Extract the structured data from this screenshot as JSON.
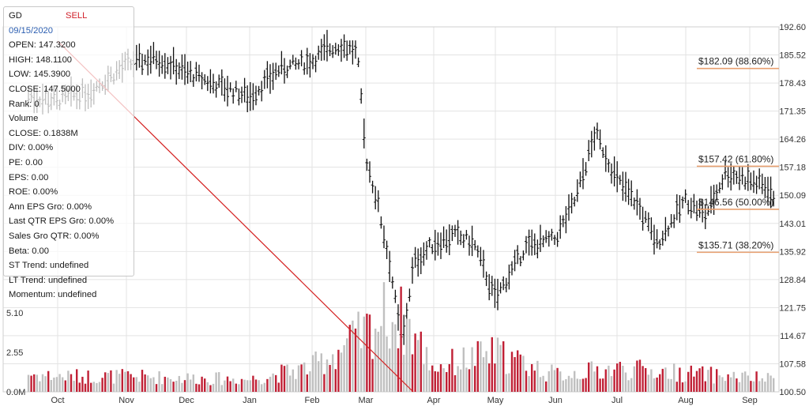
{
  "info": {
    "ticker": "GD",
    "signal": "SELL",
    "date": "09/15/2020",
    "lines": [
      "OPEN: 147.3200",
      "HIGH: 148.1100",
      "LOW: 145.3900",
      "CLOSE: 147.5000",
      "Rank: 0",
      "Volume",
      "CLOSE: 0.1838M",
      "DIV: 0.00%",
      "PE: 0.00",
      "EPS: 0.00",
      "ROE: 0.00%",
      "Ann EPS Gro: 0.00%",
      "Last QTR EPS Gro: 0.00%",
      "Sales Gro QTR: 0.00%",
      "Beta: 0.00",
      "ST Trend: undefined",
      "LT Trend: undefined",
      "Momentum: undefined"
    ]
  },
  "colors": {
    "grid": "#e3e3e3",
    "price_bar": "#111111",
    "volume_up": "#c0c0c0",
    "volume_down": "#c02035",
    "fib": "#e8a070",
    "trendline": "#d42020",
    "signal": "#d0202a",
    "date": "#2a5db0"
  },
  "chart_data": {
    "type": "bar",
    "subtype": "ohlc_price_bars_with_volume",
    "x_tick_labels": [
      "Oct",
      "Nov",
      "Dec",
      "Jan",
      "Feb",
      "Mar",
      "Apr",
      "May",
      "Jun",
      "Jul",
      "Aug",
      "Sep"
    ],
    "price_axis": {
      "ticks": [
        "192.60",
        "185.52",
        "178.43",
        "171.35",
        "164.26",
        "157.18",
        "150.09",
        "143.01",
        "135.92",
        "128.84",
        "121.75",
        "114.67",
        "107.58",
        "100.50"
      ],
      "ylim": [
        100.5,
        192.6
      ],
      "side": "right"
    },
    "volume_axis": {
      "ticks": [
        "0.0M",
        "2.55",
        "5.10"
      ],
      "ylim": [
        0,
        11.5
      ],
      "side": "left"
    },
    "grid": true,
    "fibonacci_levels": [
      {
        "price": 182.09,
        "label": "$182.09 (88.60%)"
      },
      {
        "price": 157.42,
        "label": "$157.42 (61.80%)"
      },
      {
        "price": 146.56,
        "label": "$146.56 (50.00%)"
      },
      {
        "price": 135.71,
        "label": "$135.71 (38.20%)"
      }
    ],
    "trendline": {
      "from": [
        "Oct",
        189
      ],
      "to": [
        "Mar",
        100.5
      ]
    },
    "series": [
      {
        "name": "Price",
        "x": [
          "Sep",
          "Oct",
          "Oct",
          "Nov",
          "Nov",
          "Dec",
          "Dec",
          "Jan",
          "Jan",
          "Feb",
          "Feb",
          "Feb",
          "Feb",
          "Mar",
          "Mar",
          "Mar",
          "Mar",
          "Mar",
          "Apr",
          "Apr",
          "Apr",
          "May",
          "May",
          "Jun",
          "Jun",
          "Jun",
          "Jul",
          "Jul",
          "Jul",
          "Aug",
          "Aug",
          "Aug",
          "Sep",
          "Sep"
        ],
        "values": [
          176,
          174,
          176,
          183,
          185,
          181,
          178,
          175,
          182,
          184,
          187,
          188,
          186,
          160,
          148,
          133,
          112,
          133,
          138,
          140,
          138,
          124,
          137,
          139,
          149,
          166,
          154,
          148,
          138,
          149,
          145,
          156,
          152,
          147.5
        ]
      },
      {
        "name": "Volume",
        "x": [
          "Sep",
          "Oct",
          "Nov",
          "Dec",
          "Jan",
          "Feb",
          "Mar",
          "Mar",
          "Mar",
          "Apr",
          "May",
          "Jun",
          "Jul",
          "Aug",
          "Sep"
        ],
        "values": [
          1.3,
          1.0,
          1.0,
          0.9,
          0.8,
          1.6,
          3.8,
          5.0,
          4.5,
          1.6,
          2.5,
          1.1,
          1.5,
          1.2,
          0.8
        ]
      }
    ]
  }
}
